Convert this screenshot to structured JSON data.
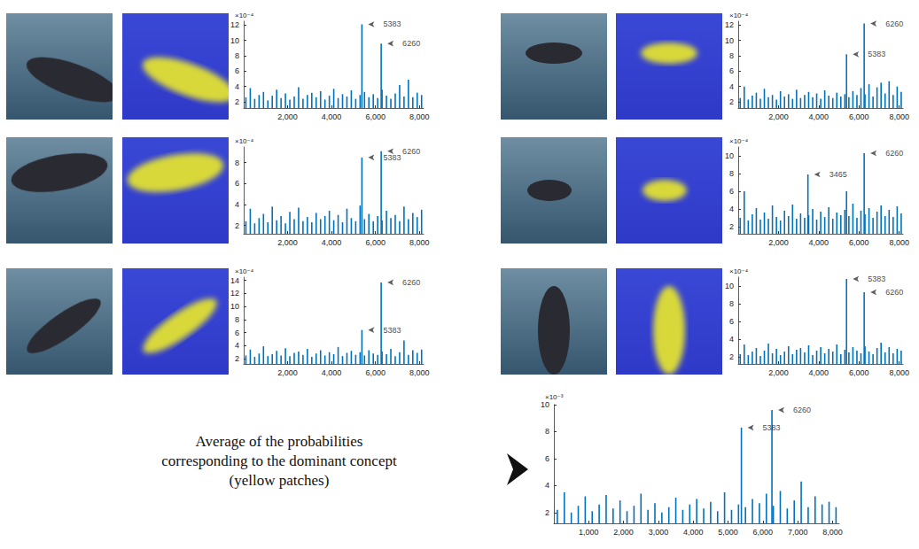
{
  "chart_data": [
    {
      "type": "bar",
      "color": "#0072bd",
      "grid": false,
      "y_exponent_label": "×10⁻⁴",
      "xlim": [
        0,
        8192
      ],
      "xticks": [
        2000,
        4000,
        6000,
        8000
      ],
      "ylim": [
        1.2,
        12.5
      ],
      "yticks": [
        2,
        4,
        6,
        8,
        10,
        12
      ],
      "x": [
        100,
        300,
        500,
        700,
        900,
        1100,
        1300,
        1500,
        1700,
        1900,
        2100,
        2300,
        2500,
        2700,
        2900,
        3100,
        3300,
        3500,
        3700,
        3900,
        4100,
        4300,
        4500,
        4700,
        4900,
        5100,
        5300,
        5383,
        5500,
        5700,
        5900,
        6100,
        6260,
        6300,
        6500,
        6700,
        6900,
        7100,
        7300,
        7500,
        7700,
        7900,
        8100
      ],
      "values": [
        2.6,
        3.8,
        2.4,
        2.9,
        3.3,
        2.2,
        2.8,
        3.6,
        2.5,
        3.1,
        2.3,
        2.7,
        3.9,
        2.4,
        2.9,
        3.2,
        2.6,
        3.4,
        2.3,
        2.8,
        3.7,
        2.5,
        3.0,
        2.7,
        3.5,
        2.4,
        2.9,
        12.1,
        3.3,
        2.6,
        3.0,
        2.5,
        9.6,
        3.6,
        2.8,
        2.4,
        3.1,
        4.2,
        2.7,
        4.9,
        2.6,
        3.2,
        2.9
      ],
      "annotations": [
        {
          "x": 5383,
          "y": 12.1,
          "text": "5383"
        },
        {
          "x": 6260,
          "y": 9.6,
          "text": "6260"
        }
      ]
    },
    {
      "type": "bar",
      "color": "#0072bd",
      "grid": false,
      "y_exponent_label": "×10⁻⁴",
      "xlim": [
        0,
        8192
      ],
      "xticks": [
        2000,
        4000,
        6000,
        8000
      ],
      "ylim": [
        1.2,
        9.5
      ],
      "yticks": [
        2,
        4,
        6,
        8
      ],
      "x": [
        100,
        300,
        500,
        700,
        900,
        1100,
        1300,
        1500,
        1700,
        1900,
        2100,
        2300,
        2500,
        2700,
        2900,
        3100,
        3300,
        3500,
        3700,
        3900,
        4100,
        4300,
        4500,
        4700,
        4900,
        5100,
        5300,
        5383,
        5500,
        5700,
        5900,
        6100,
        6260,
        6300,
        6500,
        6700,
        6900,
        7100,
        7300,
        7500,
        7700,
        7900,
        8100
      ],
      "values": [
        2.4,
        3.6,
        2.2,
        2.7,
        3.1,
        2.3,
        3.8,
        2.5,
        2.9,
        2.2,
        3.3,
        2.6,
        3.7,
        2.4,
        2.8,
        2.3,
        3.2,
        2.6,
        2.9,
        3.4,
        2.5,
        3.0,
        2.3,
        3.6,
        2.7,
        2.4,
        3.9,
        8.5,
        2.6,
        3.1,
        2.4,
        2.9,
        9.1,
        2.5,
        3.4,
        2.7,
        3.0,
        2.4,
        3.8,
        2.6,
        3.2,
        2.8,
        3.5
      ],
      "annotations": [
        {
          "x": 5383,
          "y": 8.5,
          "text": "5383"
        },
        {
          "x": 6260,
          "y": 9.1,
          "text": "6260"
        }
      ]
    },
    {
      "type": "bar",
      "color": "#0072bd",
      "grid": false,
      "y_exponent_label": "×10⁻⁴",
      "xlim": [
        0,
        8192
      ],
      "xticks": [
        2000,
        4000,
        6000,
        8000
      ],
      "ylim": [
        1.2,
        14.5
      ],
      "yticks": [
        2,
        4,
        6,
        8,
        10,
        12,
        14
      ],
      "x": [
        100,
        300,
        500,
        700,
        900,
        1100,
        1300,
        1500,
        1700,
        1900,
        2100,
        2300,
        2500,
        2700,
        2900,
        3100,
        3300,
        3500,
        3700,
        3900,
        4100,
        4300,
        4500,
        4700,
        4900,
        5100,
        5300,
        5383,
        5500,
        5700,
        5900,
        6100,
        6260,
        6300,
        6500,
        6700,
        6900,
        7100,
        7300,
        7500,
        7700,
        7900,
        8100
      ],
      "values": [
        2.5,
        3.4,
        2.3,
        2.8,
        3.9,
        2.4,
        2.7,
        3.2,
        2.5,
        3.6,
        2.4,
        2.9,
        3.1,
        2.6,
        3.5,
        2.3,
        2.8,
        3.3,
        2.5,
        3.0,
        2.7,
        3.8,
        2.4,
        2.9,
        3.2,
        2.6,
        3.0,
        6.4,
        2.5,
        3.3,
        2.8,
        2.6,
        13.7,
        3.1,
        2.7,
        3.5,
        2.4,
        3.0,
        4.8,
        2.6,
        3.3,
        2.9,
        3.4
      ],
      "annotations": [
        {
          "x": 6260,
          "y": 13.7,
          "text": "6260"
        },
        {
          "x": 5383,
          "y": 6.4,
          "text": "5383"
        }
      ]
    },
    {
      "type": "bar",
      "color": "#0072bd",
      "grid": false,
      "y_exponent_label": "×10⁻⁴",
      "xlim": [
        0,
        8192
      ],
      "xticks": [
        2000,
        4000,
        6000,
        8000
      ],
      "ylim": [
        1.2,
        12.5
      ],
      "yticks": [
        2,
        4,
        6,
        8,
        10,
        12
      ],
      "x": [
        100,
        300,
        500,
        700,
        900,
        1100,
        1300,
        1500,
        1700,
        1900,
        2100,
        2300,
        2500,
        2700,
        2900,
        3100,
        3300,
        3500,
        3700,
        3900,
        4100,
        4300,
        4500,
        4700,
        4900,
        5100,
        5300,
        5383,
        5500,
        5700,
        5900,
        6100,
        6260,
        6300,
        6500,
        6700,
        6900,
        7100,
        7300,
        7500,
        7700,
        7900,
        8100
      ],
      "values": [
        2.5,
        4.0,
        2.3,
        2.8,
        3.2,
        2.4,
        3.7,
        2.6,
        2.9,
        2.3,
        3.4,
        2.7,
        3.0,
        2.4,
        3.6,
        2.5,
        2.9,
        3.3,
        2.6,
        3.1,
        2.4,
        3.5,
        2.8,
        2.5,
        3.2,
        2.7,
        3.0,
        8.2,
        2.6,
        3.4,
        2.9,
        3.8,
        12.2,
        3.0,
        4.3,
        2.7,
        3.9,
        4.5,
        3.1,
        4.7,
        2.9,
        4.0,
        3.3
      ],
      "annotations": [
        {
          "x": 6260,
          "y": 12.2,
          "text": "6260"
        },
        {
          "x": 5383,
          "y": 8.2,
          "text": "5383"
        }
      ]
    },
    {
      "type": "bar",
      "color": "#0072bd",
      "grid": false,
      "y_exponent_label": "×10⁻⁴",
      "xlim": [
        0,
        8192
      ],
      "xticks": [
        2000,
        4000,
        6000,
        8000
      ],
      "ylim": [
        1.2,
        11
      ],
      "yticks": [
        2,
        4,
        6,
        8,
        10
      ],
      "x": [
        100,
        300,
        500,
        700,
        900,
        1100,
        1300,
        1500,
        1700,
        1900,
        2100,
        2300,
        2500,
        2700,
        2900,
        3100,
        3300,
        3465,
        3500,
        3700,
        3900,
        4100,
        4300,
        4500,
        4700,
        4900,
        5100,
        5300,
        5383,
        5500,
        5700,
        5900,
        6100,
        6260,
        6300,
        6500,
        6700,
        6900,
        7100,
        7300,
        7500,
        7700,
        7900,
        8100
      ],
      "values": [
        3.0,
        6.0,
        2.7,
        3.4,
        4.1,
        2.8,
        3.6,
        2.9,
        4.4,
        3.1,
        2.7,
        3.8,
        3.2,
        4.5,
        2.9,
        3.5,
        3.0,
        7.9,
        3.3,
        4.0,
        2.8,
        3.7,
        3.1,
        4.2,
        2.9,
        3.6,
        3.3,
        3.9,
        6.0,
        3.2,
        4.6,
        3.0,
        3.8,
        10.3,
        3.4,
        4.1,
        3.0,
        3.7,
        4.4,
        3.2,
        3.9,
        3.1,
        4.3,
        3.5
      ],
      "annotations": [
        {
          "x": 3465,
          "y": 7.9,
          "text": "3465"
        },
        {
          "x": 6260,
          "y": 10.3,
          "text": "6260"
        }
      ]
    },
    {
      "type": "bar",
      "color": "#0072bd",
      "grid": false,
      "y_exponent_label": "×10⁻⁴",
      "xlim": [
        0,
        8192
      ],
      "xticks": [
        2000,
        4000,
        6000,
        8000
      ],
      "ylim": [
        1.2,
        11
      ],
      "yticks": [
        2,
        4,
        6,
        8,
        10
      ],
      "x": [
        100,
        300,
        500,
        700,
        900,
        1100,
        1300,
        1500,
        1700,
        1900,
        2100,
        2300,
        2500,
        2700,
        2900,
        3100,
        3300,
        3500,
        3700,
        3900,
        4100,
        4300,
        4500,
        4700,
        4900,
        5100,
        5300,
        5383,
        5500,
        5700,
        5900,
        6100,
        6260,
        6300,
        6500,
        6700,
        6900,
        7100,
        7300,
        7500,
        7700,
        7900,
        8100
      ],
      "values": [
        2.3,
        3.4,
        2.2,
        2.6,
        3.0,
        2.1,
        2.7,
        3.5,
        2.4,
        2.9,
        2.2,
        2.6,
        3.2,
        2.3,
        2.8,
        3.0,
        2.5,
        3.3,
        2.2,
        2.7,
        3.1,
        2.4,
        2.9,
        2.6,
        3.4,
        2.3,
        2.8,
        10.8,
        2.5,
        3.1,
        2.7,
        2.4,
        9.3,
        3.2,
        2.6,
        2.3,
        3.0,
        3.6,
        2.5,
        3.1,
        2.4,
        2.9,
        2.7
      ],
      "annotations": [
        {
          "x": 5383,
          "y": 10.8,
          "text": "5383"
        },
        {
          "x": 6260,
          "y": 9.3,
          "text": "6260"
        }
      ]
    },
    {
      "type": "bar",
      "color": "#0072bd",
      "grid": false,
      "y_exponent_label": "×10⁻³",
      "xlim": [
        0,
        8192
      ],
      "xticks": [
        1000,
        2000,
        3000,
        4000,
        5000,
        6000,
        7000,
        8000
      ],
      "ylim": [
        1.2,
        10
      ],
      "yticks": [
        2,
        4,
        6,
        8,
        10
      ],
      "x": [
        100,
        300,
        500,
        700,
        900,
        1100,
        1300,
        1500,
        1700,
        1900,
        2100,
        2300,
        2500,
        2700,
        2900,
        3100,
        3300,
        3500,
        3700,
        3900,
        4100,
        4300,
        4500,
        4700,
        4900,
        5100,
        5300,
        5383,
        5500,
        5700,
        5900,
        6100,
        6260,
        6300,
        6500,
        6700,
        6900,
        7100,
        7300,
        7500,
        7700,
        7900,
        8100
      ],
      "values": [
        2.2,
        3.5,
        2.0,
        2.5,
        3.2,
        2.1,
        2.6,
        3.3,
        2.3,
        2.9,
        2.1,
        2.5,
        3.4,
        2.2,
        2.7,
        2.0,
        2.4,
        3.1,
        2.2,
        2.6,
        3.0,
        2.3,
        2.8,
        2.1,
        3.5,
        2.2,
        2.6,
        8.3,
        2.4,
        3.0,
        2.7,
        3.4,
        9.6,
        2.5,
        3.6,
        2.3,
        2.9,
        4.3,
        2.4,
        3.2,
        2.6,
        2.8,
        2.4
      ],
      "annotations": [
        {
          "x": 6260,
          "y": 9.6,
          "text": "6260"
        },
        {
          "x": 5383,
          "y": 8.3,
          "text": "5383"
        }
      ]
    }
  ],
  "caption": [
    "Average of the probabilities",
    "corresponding to the dominant concept",
    "(yellow patches)"
  ]
}
